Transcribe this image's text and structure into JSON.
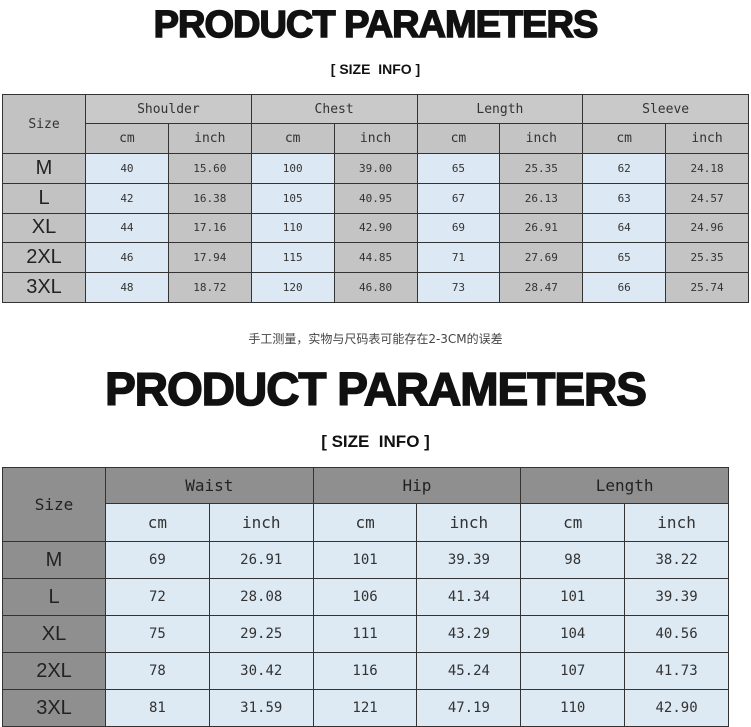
{
  "top": {
    "title": "PRODUCT PARAMETERS",
    "subtitle": "[ SIZE  INFO ]",
    "table": {
      "size_header": "Size",
      "groups": [
        "Shoulder",
        "Chest",
        "Length",
        "Sleeve"
      ],
      "units": [
        "cm",
        "inch"
      ],
      "rows": [
        {
          "size": "M",
          "values": [
            "40",
            "15.60",
            "100",
            "39.00",
            "65",
            "25.35",
            "62",
            "24.18"
          ]
        },
        {
          "size": "L",
          "values": [
            "42",
            "16.38",
            "105",
            "40.95",
            "67",
            "26.13",
            "63",
            "24.57"
          ]
        },
        {
          "size": "XL",
          "values": [
            "44",
            "17.16",
            "110",
            "42.90",
            "69",
            "26.91",
            "64",
            "24.96"
          ]
        },
        {
          "size": "2XL",
          "values": [
            "46",
            "17.94",
            "115",
            "44.85",
            "71",
            "27.69",
            "65",
            "25.35"
          ]
        },
        {
          "size": "3XL",
          "values": [
            "48",
            "18.72",
            "120",
            "46.80",
            "73",
            "28.47",
            "66",
            "25.74"
          ]
        }
      ]
    }
  },
  "note": "手工测量，实物与尺码表可能存在2-3CM的误差",
  "bottom": {
    "title": "PRODUCT PARAMETERS",
    "subtitle": "[ SIZE  INFO ]",
    "table": {
      "size_header": "Size",
      "groups": [
        "Waist",
        "Hip",
        "Length"
      ],
      "units": [
        "cm",
        "inch"
      ],
      "rows": [
        {
          "size": "M",
          "values": [
            "69",
            "26.91",
            "101",
            "39.39",
            "98",
            "38.22"
          ]
        },
        {
          "size": "L",
          "values": [
            "72",
            "28.08",
            "106",
            "41.34",
            "101",
            "39.39"
          ]
        },
        {
          "size": "XL",
          "values": [
            "75",
            "29.25",
            "111",
            "43.29",
            "104",
            "40.56"
          ]
        },
        {
          "size": "2XL",
          "values": [
            "78",
            "30.42",
            "116",
            "45.24",
            "107",
            "41.73"
          ]
        },
        {
          "size": "3XL",
          "values": [
            "81",
            "31.59",
            "121",
            "47.19",
            "110",
            "42.90"
          ]
        }
      ]
    }
  },
  "colors": {
    "cm_cell": "#dce9f5",
    "inch_cell": "#c4c4c4",
    "bottom_header": "#8f8f8f"
  }
}
